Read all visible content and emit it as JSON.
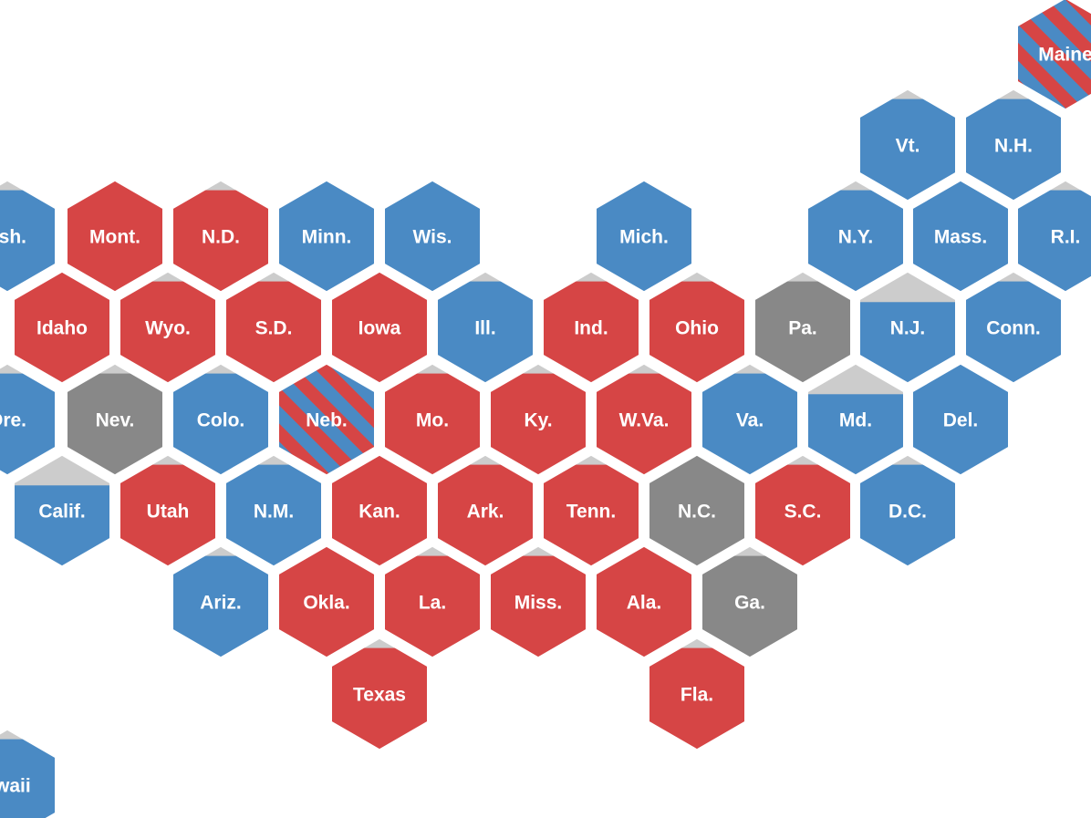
{
  "colors": {
    "dem": "#4a8ac4",
    "rep": "#d64545",
    "tossup": "#888888",
    "remaining": "#cccccc",
    "split_a": "#4a8ac4",
    "split_b": "#d64545"
  },
  "states": [
    {
      "label": "Maine",
      "party": "split",
      "remaining": 0.0
    },
    {
      "label": "Vt.",
      "party": "dem",
      "remaining": 0.1
    },
    {
      "label": "N.H.",
      "party": "dem",
      "remaining": 0.1
    },
    {
      "label": "ash.",
      "party": "dem",
      "remaining": 0.1
    },
    {
      "label": "Mont.",
      "party": "rep",
      "remaining": 0.0
    },
    {
      "label": "N.D.",
      "party": "rep",
      "remaining": 0.1
    },
    {
      "label": "Minn.",
      "party": "dem",
      "remaining": 0.0
    },
    {
      "label": "Wis.",
      "party": "dem",
      "remaining": 0.0
    },
    {
      "label": "Mich.",
      "party": "dem",
      "remaining": 0.0
    },
    {
      "label": "N.Y.",
      "party": "dem",
      "remaining": 0.1
    },
    {
      "label": "Mass.",
      "party": "dem",
      "remaining": 0.0
    },
    {
      "label": "R.I.",
      "party": "dem",
      "remaining": 0.1
    },
    {
      "label": "Idaho",
      "party": "rep",
      "remaining": 0.0
    },
    {
      "label": "Wyo.",
      "party": "rep",
      "remaining": 0.1
    },
    {
      "label": "S.D.",
      "party": "rep",
      "remaining": 0.1
    },
    {
      "label": "Iowa",
      "party": "rep",
      "remaining": 0.0
    },
    {
      "label": "Ill.",
      "party": "dem",
      "remaining": 0.1
    },
    {
      "label": "Ind.",
      "party": "rep",
      "remaining": 0.1
    },
    {
      "label": "Ohio",
      "party": "rep",
      "remaining": 0.1
    },
    {
      "label": "Pa.",
      "party": "tossup",
      "remaining": 0.1
    },
    {
      "label": "N.J.",
      "party": "dem",
      "remaining": 0.28
    },
    {
      "label": "Conn.",
      "party": "dem",
      "remaining": 0.1
    },
    {
      "label": "Ore.",
      "party": "dem",
      "remaining": 0.1
    },
    {
      "label": "Nev.",
      "party": "tossup",
      "remaining": 0.1
    },
    {
      "label": "Colo.",
      "party": "dem",
      "remaining": 0.1
    },
    {
      "label": "Neb.",
      "party": "split",
      "remaining": 0.0
    },
    {
      "label": "Mo.",
      "party": "rep",
      "remaining": 0.1
    },
    {
      "label": "Ky.",
      "party": "rep",
      "remaining": 0.1
    },
    {
      "label": "W.Va.",
      "party": "rep",
      "remaining": 0.1
    },
    {
      "label": "Va.",
      "party": "dem",
      "remaining": 0.1
    },
    {
      "label": "Md.",
      "party": "dem",
      "remaining": 0.28
    },
    {
      "label": "Del.",
      "party": "dem",
      "remaining": 0.0
    },
    {
      "label": "Calif.",
      "party": "dem",
      "remaining": 0.28
    },
    {
      "label": "Utah",
      "party": "rep",
      "remaining": 0.1
    },
    {
      "label": "N.M.",
      "party": "dem",
      "remaining": 0.1
    },
    {
      "label": "Kan.",
      "party": "rep",
      "remaining": 0.0
    },
    {
      "label": "Ark.",
      "party": "rep",
      "remaining": 0.1
    },
    {
      "label": "Tenn.",
      "party": "rep",
      "remaining": 0.1
    },
    {
      "label": "N.C.",
      "party": "tossup",
      "remaining": 0.0
    },
    {
      "label": "S.C.",
      "party": "rep",
      "remaining": 0.1
    },
    {
      "label": "D.C.",
      "party": "dem",
      "remaining": 0.1
    },
    {
      "label": "Ariz.",
      "party": "dem",
      "remaining": 0.1
    },
    {
      "label": "Okla.",
      "party": "rep",
      "remaining": 0.0
    },
    {
      "label": "La.",
      "party": "rep",
      "remaining": 0.1
    },
    {
      "label": "Miss.",
      "party": "rep",
      "remaining": 0.1
    },
    {
      "label": "Ala.",
      "party": "rep",
      "remaining": 0.0
    },
    {
      "label": "Ga.",
      "party": "tossup",
      "remaining": 0.1
    },
    {
      "label": "Texas",
      "party": "rep",
      "remaining": 0.1
    },
    {
      "label": "Fla.",
      "party": "rep",
      "remaining": 0.1
    },
    {
      "label": "awaii",
      "party": "dem",
      "remaining": 0.1
    }
  ]
}
